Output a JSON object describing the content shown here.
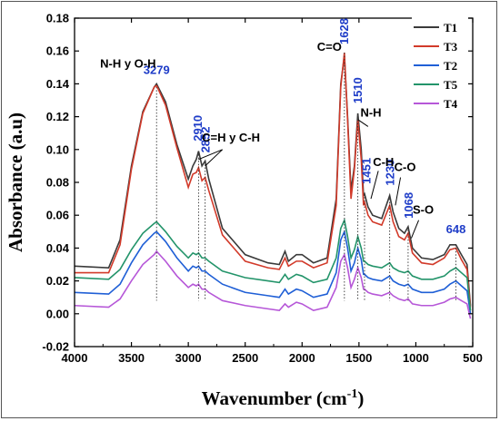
{
  "chart_data": {
    "type": "line",
    "xlabel": "Wavenumber (cm",
    "xlabel_sup": "-1",
    "xlabel_close": ")",
    "ylabel": "Absorbance (a.u)",
    "xlim": [
      4000,
      500
    ],
    "ylim": [
      -0.02,
      0.18
    ],
    "xticks": [
      "4000",
      "3500",
      "3000",
      "2500",
      "2000",
      "1500",
      "1000",
      "500"
    ],
    "yticks": [
      "-0.02",
      "0.00",
      "0.02",
      "0.04",
      "0.06",
      "0.08",
      "0.10",
      "0.12",
      "0.14",
      "0.16",
      "0.18"
    ],
    "legend_position": "top-right",
    "series": [
      {
        "name": "T1",
        "color": "#3a3a3a",
        "points": [
          [
            4000,
            0.029
          ],
          [
            3700,
            0.028
          ],
          [
            3600,
            0.045
          ],
          [
            3500,
            0.09
          ],
          [
            3400,
            0.123
          ],
          [
            3300,
            0.138
          ],
          [
            3279,
            0.14
          ],
          [
            3200,
            0.129
          ],
          [
            3100,
            0.103
          ],
          [
            3000,
            0.082
          ],
          [
            2960,
            0.09
          ],
          [
            2930,
            0.094
          ],
          [
            2910,
            0.099
          ],
          [
            2880,
            0.09
          ],
          [
            2852,
            0.093
          ],
          [
            2820,
            0.082
          ],
          [
            2700,
            0.052
          ],
          [
            2500,
            0.036
          ],
          [
            2300,
            0.031
          ],
          [
            2200,
            0.03
          ],
          [
            2150,
            0.038
          ],
          [
            2120,
            0.032
          ],
          [
            2050,
            0.036
          ],
          [
            2000,
            0.036
          ],
          [
            1900,
            0.031
          ],
          [
            1780,
            0.034
          ],
          [
            1700,
            0.07
          ],
          [
            1660,
            0.14
          ],
          [
            1628,
            0.157
          ],
          [
            1600,
            0.12
          ],
          [
            1570,
            0.075
          ],
          [
            1540,
            0.09
          ],
          [
            1510,
            0.122
          ],
          [
            1480,
            0.1
          ],
          [
            1460,
            0.072
          ],
          [
            1451,
            0.073
          ],
          [
            1420,
            0.065
          ],
          [
            1380,
            0.06
          ],
          [
            1300,
            0.058
          ],
          [
            1230,
            0.072
          ],
          [
            1200,
            0.062
          ],
          [
            1150,
            0.052
          ],
          [
            1100,
            0.049
          ],
          [
            1068,
            0.053
          ],
          [
            1030,
            0.04
          ],
          [
            950,
            0.034
          ],
          [
            850,
            0.033
          ],
          [
            750,
            0.036
          ],
          [
            700,
            0.042
          ],
          [
            648,
            0.042
          ],
          [
            600,
            0.036
          ],
          [
            550,
            0.03
          ],
          [
            520,
            0.005
          ]
        ]
      },
      {
        "name": "T3",
        "color": "#d23a2a",
        "points": [
          [
            4000,
            0.025
          ],
          [
            3700,
            0.025
          ],
          [
            3600,
            0.042
          ],
          [
            3500,
            0.088
          ],
          [
            3400,
            0.122
          ],
          [
            3300,
            0.138
          ],
          [
            3279,
            0.139
          ],
          [
            3200,
            0.127
          ],
          [
            3100,
            0.101
          ],
          [
            3000,
            0.077
          ],
          [
            2960,
            0.085
          ],
          [
            2930,
            0.086
          ],
          [
            2910,
            0.089
          ],
          [
            2880,
            0.081
          ],
          [
            2852,
            0.083
          ],
          [
            2820,
            0.075
          ],
          [
            2700,
            0.048
          ],
          [
            2500,
            0.032
          ],
          [
            2300,
            0.028
          ],
          [
            2200,
            0.027
          ],
          [
            2150,
            0.034
          ],
          [
            2120,
            0.029
          ],
          [
            2050,
            0.032
          ],
          [
            2000,
            0.032
          ],
          [
            1900,
            0.028
          ],
          [
            1780,
            0.031
          ],
          [
            1700,
            0.066
          ],
          [
            1660,
            0.138
          ],
          [
            1628,
            0.159
          ],
          [
            1600,
            0.118
          ],
          [
            1570,
            0.07
          ],
          [
            1540,
            0.088
          ],
          [
            1510,
            0.118
          ],
          [
            1480,
            0.094
          ],
          [
            1460,
            0.066
          ],
          [
            1451,
            0.068
          ],
          [
            1420,
            0.06
          ],
          [
            1380,
            0.056
          ],
          [
            1300,
            0.054
          ],
          [
            1230,
            0.066
          ],
          [
            1200,
            0.056
          ],
          [
            1150,
            0.047
          ],
          [
            1100,
            0.045
          ],
          [
            1068,
            0.049
          ],
          [
            1030,
            0.037
          ],
          [
            950,
            0.031
          ],
          [
            850,
            0.03
          ],
          [
            750,
            0.034
          ],
          [
            700,
            0.039
          ],
          [
            648,
            0.04
          ],
          [
            600,
            0.033
          ],
          [
            550,
            0.027
          ],
          [
            520,
            0.004
          ]
        ]
      },
      {
        "name": "T2",
        "color": "#1f5fd6",
        "points": [
          [
            4000,
            0.013
          ],
          [
            3700,
            0.012
          ],
          [
            3600,
            0.018
          ],
          [
            3500,
            0.031
          ],
          [
            3400,
            0.042
          ],
          [
            3300,
            0.049
          ],
          [
            3279,
            0.05
          ],
          [
            3200,
            0.044
          ],
          [
            3100,
            0.034
          ],
          [
            3000,
            0.026
          ],
          [
            2960,
            0.029
          ],
          [
            2930,
            0.028
          ],
          [
            2910,
            0.029
          ],
          [
            2880,
            0.026
          ],
          [
            2852,
            0.026
          ],
          [
            2820,
            0.024
          ],
          [
            2700,
            0.018
          ],
          [
            2500,
            0.013
          ],
          [
            2300,
            0.011
          ],
          [
            2200,
            0.01
          ],
          [
            2150,
            0.015
          ],
          [
            2120,
            0.012
          ],
          [
            2050,
            0.015
          ],
          [
            2000,
            0.014
          ],
          [
            1900,
            0.01
          ],
          [
            1780,
            0.012
          ],
          [
            1700,
            0.025
          ],
          [
            1660,
            0.045
          ],
          [
            1628,
            0.05
          ],
          [
            1600,
            0.04
          ],
          [
            1570,
            0.026
          ],
          [
            1540,
            0.031
          ],
          [
            1510,
            0.04
          ],
          [
            1480,
            0.033
          ],
          [
            1460,
            0.024
          ],
          [
            1451,
            0.024
          ],
          [
            1420,
            0.022
          ],
          [
            1380,
            0.021
          ],
          [
            1300,
            0.02
          ],
          [
            1230,
            0.023
          ],
          [
            1200,
            0.02
          ],
          [
            1150,
            0.018
          ],
          [
            1100,
            0.017
          ],
          [
            1068,
            0.018
          ],
          [
            1030,
            0.015
          ],
          [
            950,
            0.013
          ],
          [
            850,
            0.013
          ],
          [
            750,
            0.015
          ],
          [
            700,
            0.018
          ],
          [
            648,
            0.02
          ],
          [
            600,
            0.017
          ],
          [
            550,
            0.014
          ],
          [
            520,
            0.0
          ]
        ]
      },
      {
        "name": "T5",
        "color": "#23946a",
        "points": [
          [
            4000,
            0.022
          ],
          [
            3700,
            0.021
          ],
          [
            3600,
            0.027
          ],
          [
            3500,
            0.039
          ],
          [
            3400,
            0.049
          ],
          [
            3300,
            0.055
          ],
          [
            3279,
            0.056
          ],
          [
            3200,
            0.05
          ],
          [
            3100,
            0.041
          ],
          [
            3000,
            0.034
          ],
          [
            2960,
            0.037
          ],
          [
            2930,
            0.036
          ],
          [
            2910,
            0.037
          ],
          [
            2880,
            0.034
          ],
          [
            2852,
            0.034
          ],
          [
            2820,
            0.032
          ],
          [
            2700,
            0.026
          ],
          [
            2500,
            0.022
          ],
          [
            2300,
            0.02
          ],
          [
            2200,
            0.019
          ],
          [
            2150,
            0.024
          ],
          [
            2120,
            0.021
          ],
          [
            2050,
            0.024
          ],
          [
            2000,
            0.023
          ],
          [
            1900,
            0.019
          ],
          [
            1780,
            0.021
          ],
          [
            1700,
            0.034
          ],
          [
            1660,
            0.052
          ],
          [
            1628,
            0.057
          ],
          [
            1600,
            0.047
          ],
          [
            1570,
            0.034
          ],
          [
            1540,
            0.039
          ],
          [
            1510,
            0.047
          ],
          [
            1480,
            0.04
          ],
          [
            1460,
            0.032
          ],
          [
            1451,
            0.032
          ],
          [
            1420,
            0.03
          ],
          [
            1380,
            0.029
          ],
          [
            1300,
            0.028
          ],
          [
            1230,
            0.031
          ],
          [
            1200,
            0.028
          ],
          [
            1150,
            0.026
          ],
          [
            1100,
            0.025
          ],
          [
            1068,
            0.026
          ],
          [
            1030,
            0.023
          ],
          [
            950,
            0.021
          ],
          [
            850,
            0.021
          ],
          [
            750,
            0.023
          ],
          [
            700,
            0.026
          ],
          [
            648,
            0.028
          ],
          [
            600,
            0.025
          ],
          [
            550,
            0.022
          ],
          [
            520,
            0.002
          ]
        ]
      },
      {
        "name": "T4",
        "color": "#b657d8",
        "points": [
          [
            4000,
            0.005
          ],
          [
            3700,
            0.004
          ],
          [
            3600,
            0.009
          ],
          [
            3500,
            0.02
          ],
          [
            3400,
            0.03
          ],
          [
            3300,
            0.036
          ],
          [
            3279,
            0.038
          ],
          [
            3200,
            0.032
          ],
          [
            3100,
            0.023
          ],
          [
            3000,
            0.016
          ],
          [
            2960,
            0.018
          ],
          [
            2930,
            0.017
          ],
          [
            2910,
            0.018
          ],
          [
            2880,
            0.015
          ],
          [
            2852,
            0.015
          ],
          [
            2820,
            0.013
          ],
          [
            2700,
            0.008
          ],
          [
            2500,
            0.005
          ],
          [
            2300,
            0.003
          ],
          [
            2200,
            0.002
          ],
          [
            2150,
            0.006
          ],
          [
            2120,
            0.004
          ],
          [
            2050,
            0.007
          ],
          [
            2000,
            0.006
          ],
          [
            1900,
            0.002
          ],
          [
            1780,
            0.004
          ],
          [
            1700,
            0.016
          ],
          [
            1660,
            0.032
          ],
          [
            1628,
            0.036
          ],
          [
            1600,
            0.028
          ],
          [
            1570,
            0.016
          ],
          [
            1540,
            0.021
          ],
          [
            1510,
            0.028
          ],
          [
            1480,
            0.022
          ],
          [
            1460,
            0.015
          ],
          [
            1451,
            0.015
          ],
          [
            1420,
            0.013
          ],
          [
            1380,
            0.012
          ],
          [
            1300,
            0.011
          ],
          [
            1230,
            0.013
          ],
          [
            1200,
            0.011
          ],
          [
            1150,
            0.009
          ],
          [
            1100,
            0.008
          ],
          [
            1068,
            0.009
          ],
          [
            1030,
            0.006
          ],
          [
            950,
            0.005
          ],
          [
            850,
            0.005
          ],
          [
            750,
            0.007
          ],
          [
            700,
            0.009
          ],
          [
            648,
            0.01
          ],
          [
            600,
            0.008
          ],
          [
            550,
            0.006
          ],
          [
            520,
            -0.003
          ]
        ]
      }
    ],
    "peak_labels": [
      {
        "text": "3279",
        "x": 3279,
        "y": 0.14
      },
      {
        "text": "2910",
        "x": 2910,
        "y": 0.099
      },
      {
        "text": "2852",
        "x": 2852,
        "y": 0.093
      },
      {
        "text": "1628",
        "x": 1628,
        "y": 0.159
      },
      {
        "text": "1510",
        "x": 1510,
        "y": 0.122
      },
      {
        "text": "1451",
        "x": 1451,
        "y": 0.073
      },
      {
        "text": "1230",
        "x": 1230,
        "y": 0.072
      },
      {
        "text": "1068",
        "x": 1068,
        "y": 0.053
      },
      {
        "text": "648",
        "x": 648,
        "y": 0.042
      }
    ],
    "group_labels": [
      {
        "text": "N-H y O-H"
      },
      {
        "text": "C=H y C-H"
      },
      {
        "text": "C=O"
      },
      {
        "text": "N-H"
      },
      {
        "text": "C-H"
      },
      {
        "text": "C-O"
      },
      {
        "text": "S-O"
      }
    ]
  }
}
